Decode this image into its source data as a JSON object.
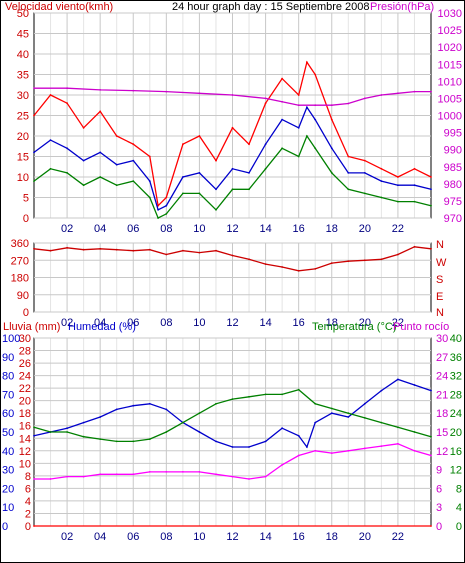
{
  "header": {
    "title_left": "Velocidad viento(kmh)",
    "title_center": "24 hour graph day : 15 Septiembre 2008",
    "title_right": "Presión(hPa)"
  },
  "dir_labels": [
    "N",
    "W",
    "S",
    "E",
    "N"
  ],
  "bottom_header": {
    "left": "Lluvia (mm)",
    "left2": "Humedad (%)",
    "right": "Temperatura (°C)",
    "right2": "Punto rocío"
  },
  "colors": {
    "wind_gust": "#ff0000",
    "wind_avg": "#0000cc",
    "wind_low": "#008000",
    "pressure": "#cc00cc",
    "direction": "#cc0000",
    "humidity": "#0000cc",
    "temperature": "#008000",
    "dewpoint": "#ff00ff",
    "rain": "#ff0000",
    "axis_left": "#cc0000",
    "axis_right": "#cc00cc",
    "grid": "#c8c8c8"
  },
  "chart_data": [
    {
      "type": "line",
      "name": "wind-pressure",
      "x_ticks": [
        "02",
        "04",
        "06",
        "08",
        "10",
        "12",
        "14",
        "16",
        "18",
        "20",
        "22"
      ],
      "xlim": [
        0,
        24
      ],
      "left_axis": {
        "ticks": [
          0,
          5,
          10,
          15,
          20,
          25,
          30,
          35,
          40,
          45,
          50
        ],
        "ylim": [
          0,
          50
        ]
      },
      "right_axis": {
        "ticks": [
          970,
          975,
          980,
          985,
          990,
          995,
          1000,
          1005,
          1010,
          1015,
          1020,
          1025,
          1030
        ],
        "ylim": [
          970,
          1030
        ]
      },
      "series": [
        {
          "name": "Velocidad viento",
          "axis": "left",
          "color": "#ff0000",
          "x": [
            0,
            1,
            2,
            3,
            4,
            5,
            6,
            7,
            7.5,
            8,
            9,
            10,
            11,
            12,
            13,
            14,
            15,
            16,
            16.5,
            17,
            18,
            19,
            20,
            21,
            22,
            23,
            24
          ],
          "y": [
            25,
            30,
            28,
            22,
            26,
            20,
            18,
            15,
            3,
            5,
            18,
            20,
            14,
            22,
            18,
            28,
            34,
            30,
            38,
            35,
            24,
            15,
            14,
            12,
            10,
            12,
            10
          ]
        },
        {
          "name": "",
          "axis": "left",
          "color": "#0000cc",
          "x": [
            0,
            1,
            2,
            3,
            4,
            5,
            6,
            7,
            7.5,
            8,
            9,
            10,
            11,
            12,
            13,
            14,
            15,
            16,
            16.5,
            17,
            18,
            19,
            20,
            21,
            22,
            23,
            24
          ],
          "y": [
            16,
            19,
            17,
            14,
            16,
            13,
            14,
            9,
            2,
            3,
            10,
            11,
            7,
            12,
            11,
            18,
            24,
            22,
            27,
            24,
            17,
            11,
            11,
            9,
            8,
            8,
            7
          ]
        },
        {
          "name": "",
          "axis": "left",
          "color": "#008000",
          "x": [
            0,
            1,
            2,
            3,
            4,
            5,
            6,
            7,
            7.5,
            8,
            9,
            10,
            11,
            12,
            13,
            14,
            15,
            16,
            16.5,
            17,
            18,
            19,
            20,
            21,
            22,
            23,
            24
          ],
          "y": [
            9,
            12,
            11,
            8,
            10,
            8,
            9,
            5,
            0,
            1,
            6,
            6,
            2,
            7,
            7,
            12,
            17,
            15,
            20,
            17,
            11,
            7,
            6,
            5,
            4,
            4,
            3
          ]
        },
        {
          "name": "Presión",
          "axis": "right",
          "color": "#cc00cc",
          "x": [
            0,
            2,
            4,
            6,
            8,
            10,
            12,
            14,
            15,
            16,
            17,
            18,
            19,
            20,
            21,
            22,
            23,
            24
          ],
          "y": [
            1008,
            1008,
            1007.5,
            1007.3,
            1007,
            1006.5,
            1006,
            1005,
            1004,
            1003,
            1003,
            1003,
            1003.5,
            1005,
            1006,
            1006.5,
            1007,
            1007
          ]
        }
      ]
    },
    {
      "type": "line",
      "name": "wind-direction",
      "x_ticks": [
        "02",
        "04",
        "06",
        "08",
        "10",
        "12",
        "14",
        "16",
        "18",
        "20",
        "22"
      ],
      "xlim": [
        0,
        24
      ],
      "left_axis": {
        "ticks": [
          0,
          90,
          180,
          270,
          360
        ],
        "ylim": [
          0,
          360
        ]
      },
      "series": [
        {
          "name": "",
          "color": "#cc0000",
          "x": [
            0,
            1,
            2,
            3,
            4,
            5,
            6,
            7,
            8,
            9,
            10,
            11,
            12,
            13,
            14,
            15,
            16,
            17,
            18,
            19,
            20,
            21,
            22,
            23,
            24
          ],
          "y": [
            330,
            320,
            335,
            325,
            330,
            325,
            320,
            325,
            300,
            320,
            310,
            320,
            295,
            275,
            250,
            235,
            215,
            225,
            255,
            265,
            270,
            275,
            300,
            340,
            330
          ]
        }
      ]
    },
    {
      "type": "line",
      "name": "temp-humidity",
      "x_ticks": [
        "02",
        "04",
        "06",
        "08",
        "10",
        "12",
        "14",
        "16",
        "18",
        "20",
        "22"
      ],
      "xlim": [
        0,
        24
      ],
      "left_axis": {
        "ticks": [
          0,
          2,
          4,
          6,
          8,
          10,
          12,
          14,
          16,
          18,
          20,
          22,
          24,
          26,
          28,
          30
        ],
        "ylim": [
          0,
          30
        ]
      },
      "left_axis2": {
        "ticks": [
          0,
          10,
          20,
          30,
          40,
          50,
          60,
          70,
          80,
          90,
          100
        ],
        "ylim": [
          0,
          100
        ]
      },
      "right_axis": {
        "ticks": [
          0,
          4,
          8,
          12,
          16,
          20,
          24,
          28,
          32,
          36,
          40
        ],
        "ylim": [
          0,
          40
        ]
      },
      "right_axis2": {
        "ticks": [
          0,
          3,
          6,
          9,
          12,
          15,
          18,
          21,
          24,
          27,
          30
        ],
        "ylim": [
          0,
          30
        ]
      },
      "series": [
        {
          "name": "Humedad",
          "axis": "left2",
          "color": "#0000cc",
          "x": [
            0,
            1,
            2,
            3,
            4,
            5,
            6,
            7,
            8,
            9,
            10,
            11,
            12,
            13,
            14,
            15,
            16,
            16.5,
            17,
            18,
            19,
            20,
            21,
            22,
            23,
            24
          ],
          "y": [
            48,
            50,
            52,
            55,
            58,
            62,
            64,
            65,
            62,
            55,
            50,
            45,
            42,
            42,
            45,
            52,
            48,
            42,
            55,
            60,
            58,
            65,
            72,
            78,
            75,
            72
          ]
        },
        {
          "name": "Temperatura",
          "axis": "right",
          "color": "#008000",
          "x": [
            0,
            1,
            2,
            3,
            4,
            5,
            6,
            7,
            8,
            9,
            10,
            11,
            12,
            13,
            14,
            15,
            16,
            17,
            18,
            19,
            20,
            21,
            22,
            23,
            24
          ],
          "y": [
            21,
            20,
            20,
            19,
            18.5,
            18,
            18,
            18.5,
            20,
            22,
            24,
            26,
            27,
            27.5,
            28,
            28,
            29,
            26,
            25,
            24,
            23,
            22,
            21,
            20,
            19
          ]
        },
        {
          "name": "Punto rocío",
          "axis": "right",
          "color": "#ff00ff",
          "x": [
            0,
            1,
            2,
            3,
            4,
            5,
            6,
            7,
            8,
            9,
            10,
            11,
            12,
            13,
            14,
            15,
            16,
            17,
            18,
            19,
            20,
            21,
            22,
            23,
            24
          ],
          "y": [
            10,
            10,
            10.5,
            10.5,
            11,
            11,
            11,
            11.5,
            11.5,
            11.5,
            11.5,
            11,
            10.5,
            10,
            10.5,
            13,
            15,
            16,
            15.5,
            16,
            16.5,
            17,
            17.5,
            16,
            15
          ]
        },
        {
          "name": "Lluvia",
          "axis": "left",
          "color": "#ff0000",
          "x": [
            0,
            24
          ],
          "y": [
            0,
            0
          ]
        }
      ]
    }
  ]
}
